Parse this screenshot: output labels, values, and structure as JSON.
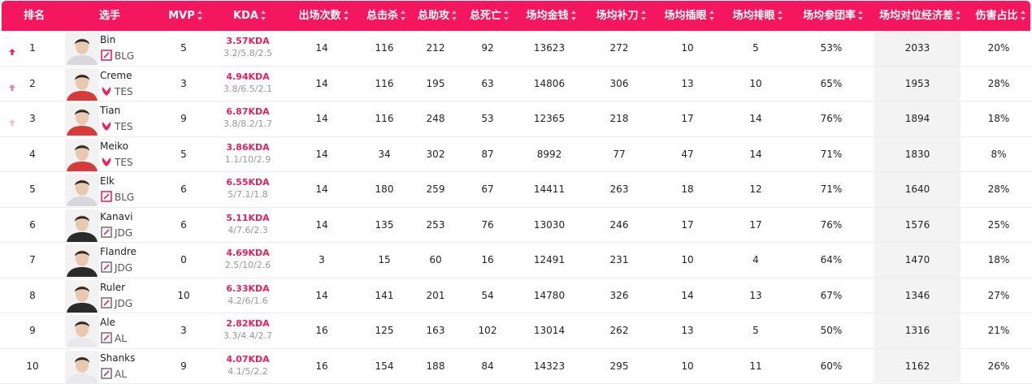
{
  "colors": {
    "accent": "#f4165e",
    "kda": "#e6215e",
    "arrow_up_strong": "#e8255b",
    "arrow_up_mid": "#f07fa0",
    "arrow_up_light": "#f6bccd",
    "highlight_column": "#f3f3f3"
  },
  "headers": {
    "rank": "排名",
    "player": "选手",
    "mvp": "MVP",
    "kda": "KDA",
    "appearances": "出场次数",
    "kills": "总击杀",
    "assists": "总助攻",
    "deaths": "总死亡",
    "avg_gold": "场均金钱",
    "avg_cs": "场均补刀",
    "avg_wards": "场均插眼",
    "avg_wards_cleared": "场均排眼",
    "kill_participation": "场均参团率",
    "gold_diff": "场均对位经济差",
    "damage_share": "伤害占比"
  },
  "rows": [
    {
      "rank": "1",
      "arrow": "up-strong-icon",
      "name": "Bin",
      "team": "BLG",
      "team_icon": "blg-logo-icon",
      "mvp": "5",
      "kda": "3.57KDA",
      "kda_detail": "3.2/5.8/2.5",
      "appearances": "14",
      "kills": "116",
      "assists": "212",
      "deaths": "92",
      "avg_gold": "13623",
      "avg_cs": "272",
      "avg_wards": "10",
      "avg_wards_cleared": "5",
      "kill_participation": "53%",
      "gold_diff": "2033",
      "damage_share": "20%"
    },
    {
      "rank": "2",
      "arrow": "up-mid-icon",
      "name": "Creme",
      "team": "TES",
      "team_icon": "tes-logo-icon",
      "mvp": "3",
      "kda": "4.94KDA",
      "kda_detail": "3.8/6.5/2.1",
      "appearances": "14",
      "kills": "116",
      "assists": "195",
      "deaths": "63",
      "avg_gold": "14806",
      "avg_cs": "306",
      "avg_wards": "13",
      "avg_wards_cleared": "10",
      "kill_participation": "65%",
      "gold_diff": "1953",
      "damage_share": "28%"
    },
    {
      "rank": "3",
      "arrow": "up-light-icon",
      "name": "Tian",
      "team": "TES",
      "team_icon": "tes-logo-icon",
      "mvp": "9",
      "kda": "6.87KDA",
      "kda_detail": "3.8/8.2/1.7",
      "appearances": "14",
      "kills": "116",
      "assists": "248",
      "deaths": "53",
      "avg_gold": "12365",
      "avg_cs": "218",
      "avg_wards": "17",
      "avg_wards_cleared": "14",
      "kill_participation": "76%",
      "gold_diff": "1894",
      "damage_share": "18%"
    },
    {
      "rank": "4",
      "arrow": "",
      "name": "Meiko",
      "team": "TES",
      "team_icon": "tes-logo-icon",
      "mvp": "5",
      "kda": "3.86KDA",
      "kda_detail": "1.1/10/2.9",
      "appearances": "14",
      "kills": "34",
      "assists": "302",
      "deaths": "87",
      "avg_gold": "8992",
      "avg_cs": "77",
      "avg_wards": "47",
      "avg_wards_cleared": "14",
      "kill_participation": "71%",
      "gold_diff": "1830",
      "damage_share": "8%"
    },
    {
      "rank": "5",
      "arrow": "",
      "name": "Elk",
      "team": "BLG",
      "team_icon": "blg-logo-icon",
      "mvp": "6",
      "kda": "6.55KDA",
      "kda_detail": "5/7.1/1.8",
      "appearances": "14",
      "kills": "180",
      "assists": "259",
      "deaths": "67",
      "avg_gold": "14411",
      "avg_cs": "263",
      "avg_wards": "18",
      "avg_wards_cleared": "12",
      "kill_participation": "71%",
      "gold_diff": "1640",
      "damage_share": "28%"
    },
    {
      "rank": "6",
      "arrow": "",
      "name": "Kanavi",
      "team": "JDG",
      "team_icon": "jdg-logo-icon",
      "mvp": "6",
      "kda": "5.11KDA",
      "kda_detail": "4/7.6/2.3",
      "appearances": "14",
      "kills": "135",
      "assists": "253",
      "deaths": "76",
      "avg_gold": "13030",
      "avg_cs": "246",
      "avg_wards": "17",
      "avg_wards_cleared": "17",
      "kill_participation": "76%",
      "gold_diff": "1576",
      "damage_share": "25%"
    },
    {
      "rank": "7",
      "arrow": "",
      "name": "Flandre",
      "team": "JDG",
      "team_icon": "jdg-logo-icon",
      "mvp": "0",
      "kda": "4.69KDA",
      "kda_detail": "2.5/10/2.6",
      "appearances": "3",
      "kills": "15",
      "assists": "60",
      "deaths": "16",
      "avg_gold": "12491",
      "avg_cs": "231",
      "avg_wards": "10",
      "avg_wards_cleared": "4",
      "kill_participation": "64%",
      "gold_diff": "1470",
      "damage_share": "18%"
    },
    {
      "rank": "8",
      "arrow": "",
      "name": "Ruler",
      "team": "JDG",
      "team_icon": "jdg-logo-icon",
      "mvp": "10",
      "kda": "6.33KDA",
      "kda_detail": "4.2/6/1.6",
      "appearances": "14",
      "kills": "141",
      "assists": "201",
      "deaths": "54",
      "avg_gold": "14780",
      "avg_cs": "326",
      "avg_wards": "14",
      "avg_wards_cleared": "13",
      "kill_participation": "67%",
      "gold_diff": "1346",
      "damage_share": "27%"
    },
    {
      "rank": "9",
      "arrow": "",
      "name": "Ale",
      "team": "AL",
      "team_icon": "al-logo-icon",
      "mvp": "3",
      "kda": "2.82KDA",
      "kda_detail": "3.3/4.4/2.7",
      "appearances": "16",
      "kills": "125",
      "assists": "163",
      "deaths": "102",
      "avg_gold": "13014",
      "avg_cs": "262",
      "avg_wards": "13",
      "avg_wards_cleared": "5",
      "kill_participation": "50%",
      "gold_diff": "1316",
      "damage_share": "21%"
    },
    {
      "rank": "10",
      "arrow": "",
      "name": "Shanks",
      "team": "AL",
      "team_icon": "al-logo-icon",
      "mvp": "9",
      "kda": "4.07KDA",
      "kda_detail": "4.1/5/2.2",
      "appearances": "16",
      "kills": "154",
      "assists": "188",
      "deaths": "84",
      "avg_gold": "14323",
      "avg_cs": "295",
      "avg_wards": "10",
      "avg_wards_cleared": "11",
      "kill_participation": "60%",
      "gold_diff": "1162",
      "damage_share": "26%"
    }
  ]
}
